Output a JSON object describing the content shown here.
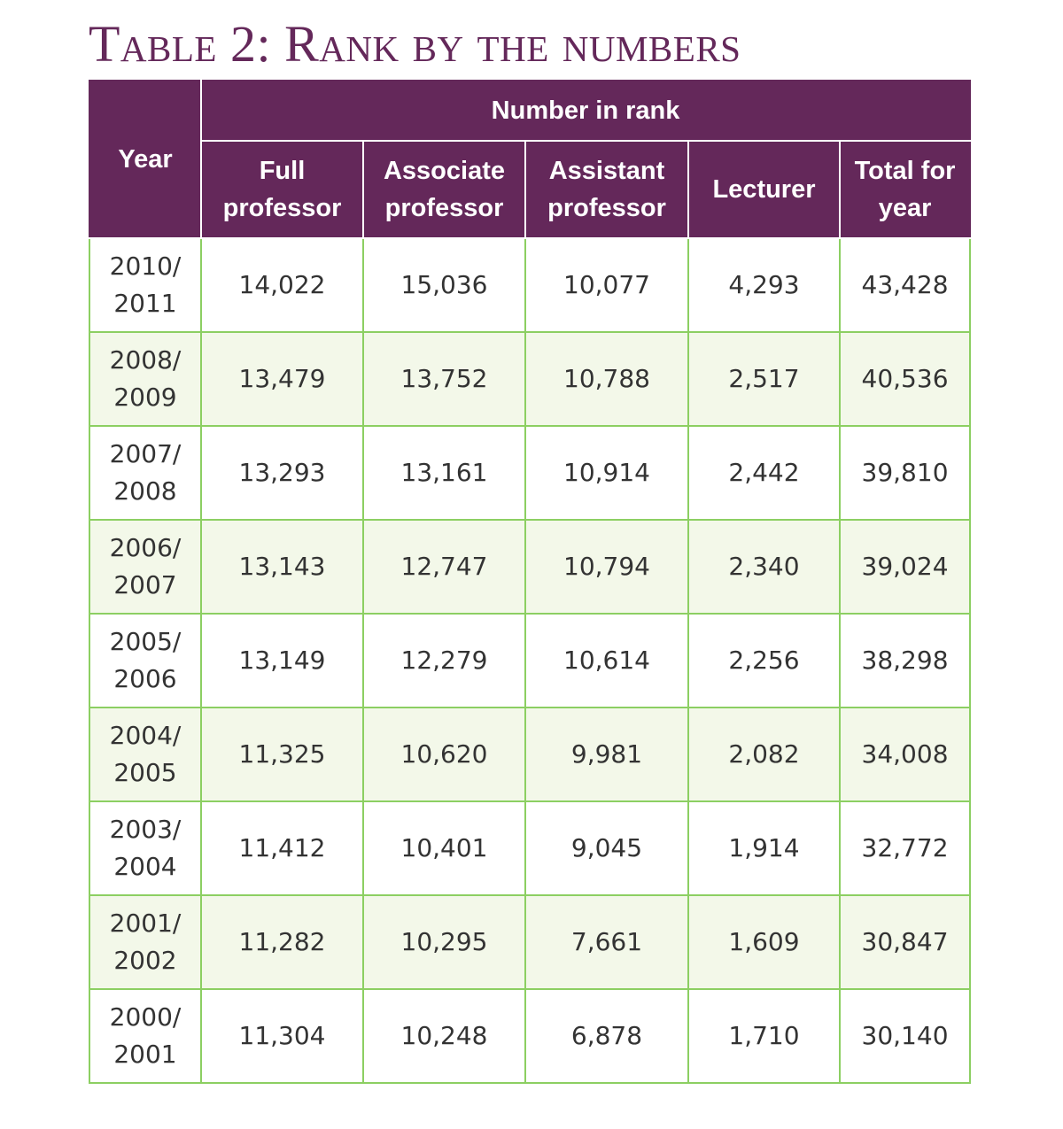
{
  "title": "Table 2: Rank by the numbers",
  "colors": {
    "header_bg": "#64285a",
    "title": "#64285a",
    "row_alt_bg": "#f3f8e9",
    "grid": "#8ccf62"
  },
  "headers": {
    "year": "Year",
    "group": "Number in rank",
    "full": [
      "Full",
      "professor"
    ],
    "associate": [
      "Associate",
      "professor"
    ],
    "assistant": [
      "Assistant",
      "professor"
    ],
    "lecturer": "Lecturer",
    "total": [
      "Total for",
      "year"
    ]
  },
  "rows": [
    {
      "year": [
        "2010/",
        "2011"
      ],
      "full": "14,022",
      "associate": "15,036",
      "assistant": "10,077",
      "lecturer": "4,293",
      "total": "43,428"
    },
    {
      "year": [
        "2008/",
        "2009"
      ],
      "full": "13,479",
      "associate": "13,752",
      "assistant": "10,788",
      "lecturer": "2,517",
      "total": "40,536"
    },
    {
      "year": [
        "2007/",
        "2008"
      ],
      "full": "13,293",
      "associate": "13,161",
      "assistant": "10,914",
      "lecturer": "2,442",
      "total": "39,810"
    },
    {
      "year": [
        "2006/",
        "2007"
      ],
      "full": "13,143",
      "associate": "12,747",
      "assistant": "10,794",
      "lecturer": "2,340",
      "total": "39,024"
    },
    {
      "year": [
        "2005/",
        "2006"
      ],
      "full": "13,149",
      "associate": "12,279",
      "assistant": "10,614",
      "lecturer": "2,256",
      "total": "38,298"
    },
    {
      "year": [
        "2004/",
        "2005"
      ],
      "full": "11,325",
      "associate": "10,620",
      "assistant": "9,981",
      "lecturer": "2,082",
      "total": "34,008"
    },
    {
      "year": [
        "2003/",
        "2004"
      ],
      "full": "11,412",
      "associate": "10,401",
      "assistant": "9,045",
      "lecturer": "1,914",
      "total": "32,772"
    },
    {
      "year": [
        "2001/",
        "2002"
      ],
      "full": "11,282",
      "associate": "10,295",
      "assistant": "7,661",
      "lecturer": "1,609",
      "total": "30,847"
    },
    {
      "year": [
        "2000/",
        "2001"
      ],
      "full": "11,304",
      "associate": "10,248",
      "assistant": "6,878",
      "lecturer": "1,710",
      "total": "30,140"
    }
  ]
}
